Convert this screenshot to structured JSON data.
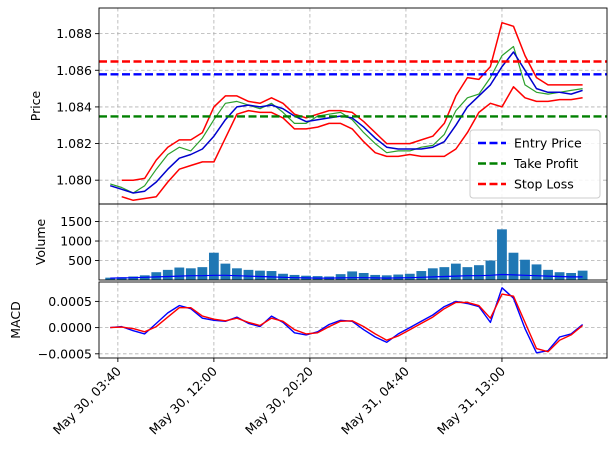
{
  "chart_data": [
    {
      "type": "line",
      "panel": "price",
      "ylabel": "Price",
      "ylim": [
        1.0787,
        1.0894
      ],
      "yticks": [
        1.08,
        1.082,
        1.084,
        1.086,
        1.088
      ],
      "ytick_labels": [
        "1.080",
        "1.082",
        "1.084",
        "1.086",
        "1.088"
      ],
      "grid": true,
      "legend_position": "bottom-right",
      "hlines": [
        {
          "name": "Entry Price",
          "value": 1.08578,
          "color": "#0000ff"
        },
        {
          "name": "Take Profit",
          "value": 1.08348,
          "color": "#008000"
        },
        {
          "name": "Stop Loss",
          "value": 1.08648,
          "color": "#ff0000"
        }
      ],
      "series": [
        {
          "role": "price",
          "color": "#2ca02c",
          "x": [
            "May 30, 03:00",
            "May 30, 04:00",
            "May 30, 05:00",
            "May 30, 06:00",
            "May 30, 07:00",
            "May 30, 08:00",
            "May 30, 09:00",
            "May 30, 10:00",
            "May 30, 11:00",
            "May 30, 12:00",
            "May 30, 13:00",
            "May 30, 14:00",
            "May 30, 15:00",
            "May 30, 16:00",
            "May 30, 17:00",
            "May 30, 18:00",
            "May 30, 19:00",
            "May 30, 20:00",
            "May 30, 21:00",
            "May 30, 22:00",
            "May 30, 23:00",
            "May 31, 00:00",
            "May 31, 01:00",
            "May 31, 02:00",
            "May 31, 03:00",
            "May 31, 04:00",
            "May 31, 05:00",
            "May 31, 06:00",
            "May 31, 07:00",
            "May 31, 08:00",
            "May 31, 09:00",
            "May 31, 10:00",
            "May 31, 11:00",
            "May 31, 12:00",
            "May 31, 13:00",
            "May 31, 14:00",
            "May 31, 15:00",
            "May 31, 16:00",
            "May 31, 17:00",
            "May 31, 18:00",
            "May 31, 19:00",
            "May 31, 20:00"
          ],
          "values": [
            1.0798,
            1.0796,
            1.0793,
            1.0797,
            1.0806,
            1.0814,
            1.0818,
            1.0816,
            1.0823,
            1.0833,
            1.0842,
            1.0843,
            1.0841,
            1.0839,
            1.0842,
            1.0837,
            1.0831,
            1.0831,
            1.0835,
            1.0836,
            1.0837,
            1.0833,
            1.0826,
            1.082,
            1.0815,
            1.0816,
            1.0816,
            1.0818,
            1.0819,
            1.0825,
            1.0838,
            1.0845,
            1.0847,
            1.0856,
            1.0868,
            1.0873,
            1.0852,
            1.0848,
            1.0847,
            1.0848,
            1.0849,
            1.085
          ]
        },
        {
          "role": "moving-average",
          "color": "#0000cd",
          "x": [
            "May 30, 03:00",
            "May 30, 04:00",
            "May 30, 05:00",
            "May 30, 06:00",
            "May 30, 07:00",
            "May 30, 08:00",
            "May 30, 09:00",
            "May 30, 10:00",
            "May 30, 11:00",
            "May 30, 12:00",
            "May 30, 13:00",
            "May 30, 14:00",
            "May 30, 15:00",
            "May 30, 16:00",
            "May 30, 17:00",
            "May 30, 18:00",
            "May 30, 19:00",
            "May 30, 20:00",
            "May 30, 21:00",
            "May 30, 22:00",
            "May 30, 23:00",
            "May 31, 00:00",
            "May 31, 01:00",
            "May 31, 02:00",
            "May 31, 03:00",
            "May 31, 04:00",
            "May 31, 05:00",
            "May 31, 06:00",
            "May 31, 07:00",
            "May 31, 08:00",
            "May 31, 09:00",
            "May 31, 10:00",
            "May 31, 11:00",
            "May 31, 12:00",
            "May 31, 13:00",
            "May 31, 14:00",
            "May 31, 15:00",
            "May 31, 16:00",
            "May 31, 17:00",
            "May 31, 18:00",
            "May 31, 19:00",
            "May 31, 20:00"
          ],
          "values": [
            1.0797,
            1.0795,
            1.0793,
            1.0794,
            1.0799,
            1.0806,
            1.0812,
            1.0814,
            1.0817,
            1.0824,
            1.0833,
            1.084,
            1.0841,
            1.084,
            1.0841,
            1.0839,
            1.0835,
            1.0832,
            1.0833,
            1.0834,
            1.0835,
            1.0834,
            1.0829,
            1.0823,
            1.0818,
            1.0817,
            1.0817,
            1.0817,
            1.0818,
            1.0821,
            1.083,
            1.084,
            1.0846,
            1.0852,
            1.0862,
            1.087,
            1.086,
            1.085,
            1.0848,
            1.0848,
            1.0847,
            1.0849
          ]
        },
        {
          "role": "upper-band",
          "color": "#ff0000",
          "x": [
            "May 30, 03:00",
            "May 30, 04:00",
            "May 30, 05:00",
            "May 30, 06:00",
            "May 30, 07:00",
            "May 30, 08:00",
            "May 30, 09:00",
            "May 30, 10:00",
            "May 30, 11:00",
            "May 30, 12:00",
            "May 30, 13:00",
            "May 30, 14:00",
            "May 30, 15:00",
            "May 30, 16:00",
            "May 30, 17:00",
            "May 30, 18:00",
            "May 30, 19:00",
            "May 30, 20:00",
            "May 30, 21:00",
            "May 30, 22:00",
            "May 30, 23:00",
            "May 31, 00:00",
            "May 31, 01:00",
            "May 31, 02:00",
            "May 31, 03:00",
            "May 31, 04:00",
            "May 31, 05:00",
            "May 31, 06:00",
            "May 31, 07:00",
            "May 31, 08:00",
            "May 31, 09:00",
            "May 31, 10:00",
            "May 31, 11:00",
            "May 31, 12:00",
            "May 31, 13:00",
            "May 31, 14:00",
            "May 31, 15:00",
            "May 31, 16:00",
            "May 31, 17:00",
            "May 31, 18:00",
            "May 31, 19:00",
            "May 31, 20:00"
          ],
          "values": [
            null,
            1.08,
            1.08,
            1.0801,
            1.0811,
            1.0818,
            1.0822,
            1.0822,
            1.0826,
            1.084,
            1.0846,
            1.0846,
            1.0843,
            1.0842,
            1.0845,
            1.0842,
            1.0836,
            1.0834,
            1.0836,
            1.0838,
            1.0838,
            1.0837,
            1.0832,
            1.0826,
            1.082,
            1.082,
            1.082,
            1.0822,
            1.0824,
            1.0831,
            1.0846,
            1.0856,
            1.0855,
            1.0862,
            1.0886,
            1.0884,
            1.0868,
            1.0856,
            1.0852,
            1.0852,
            1.0852,
            1.0852
          ]
        },
        {
          "role": "lower-band",
          "color": "#ff0000",
          "x": [
            "May 30, 03:00",
            "May 30, 04:00",
            "May 30, 05:00",
            "May 30, 06:00",
            "May 30, 07:00",
            "May 30, 08:00",
            "May 30, 09:00",
            "May 30, 10:00",
            "May 30, 11:00",
            "May 30, 12:00",
            "May 30, 13:00",
            "May 30, 14:00",
            "May 30, 15:00",
            "May 30, 16:00",
            "May 30, 17:00",
            "May 30, 18:00",
            "May 30, 19:00",
            "May 30, 20:00",
            "May 30, 21:00",
            "May 30, 22:00",
            "May 30, 23:00",
            "May 31, 00:00",
            "May 31, 01:00",
            "May 31, 02:00",
            "May 31, 03:00",
            "May 31, 04:00",
            "May 31, 05:00",
            "May 31, 06:00",
            "May 31, 07:00",
            "May 31, 08:00",
            "May 31, 09:00",
            "May 31, 10:00",
            "May 31, 11:00",
            "May 31, 12:00",
            "May 31, 13:00",
            "May 31, 14:00",
            "May 31, 15:00",
            "May 31, 16:00",
            "May 31, 17:00",
            "May 31, 18:00",
            "May 31, 19:00",
            "May 31, 20:00"
          ],
          "values": [
            null,
            1.0791,
            1.0789,
            1.079,
            1.0791,
            1.0799,
            1.0806,
            1.0808,
            1.081,
            1.081,
            1.0823,
            1.0836,
            1.0838,
            1.0837,
            1.0837,
            1.0834,
            1.0828,
            1.0828,
            1.0829,
            1.0831,
            1.0831,
            1.0828,
            1.0821,
            1.0815,
            1.0813,
            1.0813,
            1.0814,
            1.0813,
            1.0813,
            1.0813,
            1.0817,
            1.0826,
            1.0837,
            1.0842,
            1.084,
            1.0851,
            1.0845,
            1.0843,
            1.0843,
            1.0844,
            1.0844,
            1.0845
          ]
        }
      ],
      "legend": [
        "Entry Price",
        "Take Profit",
        "Stop Loss"
      ]
    },
    {
      "type": "bar",
      "panel": "volume",
      "ylabel": "Volume",
      "ylim": [
        0,
        1950
      ],
      "yticks": [
        500,
        1000,
        1500
      ],
      "ytick_labels": [
        "500",
        "1000",
        "1500"
      ],
      "grid": true,
      "color": "#1f77b4",
      "x": [
        "May 30, 03:00",
        "May 30, 04:00",
        "May 30, 05:00",
        "May 30, 06:00",
        "May 30, 07:00",
        "May 30, 08:00",
        "May 30, 09:00",
        "May 30, 10:00",
        "May 30, 11:00",
        "May 30, 12:00",
        "May 30, 13:00",
        "May 30, 14:00",
        "May 30, 15:00",
        "May 30, 16:00",
        "May 30, 17:00",
        "May 30, 18:00",
        "May 30, 19:00",
        "May 30, 20:00",
        "May 30, 21:00",
        "May 30, 22:00",
        "May 30, 23:00",
        "May 31, 00:00",
        "May 31, 01:00",
        "May 31, 02:00",
        "May 31, 03:00",
        "May 31, 04:00",
        "May 31, 05:00",
        "May 31, 06:00",
        "May 31, 07:00",
        "May 31, 08:00",
        "May 31, 09:00",
        "May 31, 10:00",
        "May 31, 11:00",
        "May 31, 12:00",
        "May 31, 13:00",
        "May 31, 14:00",
        "May 31, 15:00",
        "May 31, 16:00",
        "May 31, 17:00",
        "May 31, 18:00",
        "May 31, 19:00",
        "May 31, 20:00"
      ],
      "values": [
        60,
        70,
        90,
        120,
        200,
        260,
        320,
        300,
        330,
        700,
        420,
        300,
        260,
        240,
        230,
        160,
        130,
        110,
        100,
        90,
        150,
        220,
        180,
        130,
        120,
        140,
        160,
        230,
        300,
        330,
        420,
        330,
        380,
        500,
        1300,
        700,
        520,
        400,
        260,
        200,
        180,
        240
      ],
      "volume_ma": [
        50,
        55,
        60,
        70,
        80,
        90,
        100,
        110,
        110,
        120,
        120,
        110,
        100,
        90,
        80,
        70,
        60,
        55,
        50,
        50,
        55,
        60,
        60,
        55,
        50,
        55,
        60,
        70,
        80,
        90,
        100,
        110,
        110,
        120,
        140,
        130,
        120,
        110,
        100,
        90,
        80,
        80
      ]
    },
    {
      "type": "line",
      "panel": "macd",
      "ylabel": "MACD",
      "ylim": [
        -0.00058,
        0.00087
      ],
      "yticks": [
        -0.0005,
        0.0,
        0.0005
      ],
      "ytick_labels": [
        "−0.0005",
        "0.0000",
        "0.0005"
      ],
      "grid": true,
      "x_tick_labels": [
        "May 30, 03:40",
        "May 30, 12:00",
        "May 30, 20:20",
        "May 31, 04:40",
        "May 31, 13:00"
      ],
      "x_ticks": [
        "May 30, 03:40",
        "May 30, 12:00",
        "May 30, 20:20",
        "May 31, 04:40",
        "May 31, 13:00"
      ],
      "series": [
        {
          "role": "macd",
          "color": "#0000ff",
          "x": [
            "May 30, 03:00",
            "May 30, 04:00",
            "May 30, 05:00",
            "May 30, 06:00",
            "May 30, 07:00",
            "May 30, 08:00",
            "May 30, 09:00",
            "May 30, 10:00",
            "May 30, 11:00",
            "May 30, 12:00",
            "May 30, 13:00",
            "May 30, 14:00",
            "May 30, 15:00",
            "May 30, 16:00",
            "May 30, 17:00",
            "May 30, 18:00",
            "May 30, 19:00",
            "May 30, 20:00",
            "May 30, 21:00",
            "May 30, 22:00",
            "May 30, 23:00",
            "May 31, 00:00",
            "May 31, 01:00",
            "May 31, 02:00",
            "May 31, 03:00",
            "May 31, 04:00",
            "May 31, 05:00",
            "May 31, 06:00",
            "May 31, 07:00",
            "May 31, 08:00",
            "May 31, 09:00",
            "May 31, 10:00",
            "May 31, 11:00",
            "May 31, 12:00",
            "May 31, 13:00",
            "May 31, 14:00",
            "May 31, 15:00",
            "May 31, 16:00",
            "May 31, 17:00",
            "May 31, 18:00",
            "May 31, 19:00",
            "May 31, 20:00"
          ],
          "values": [
            0.0,
            2e-05,
            -6e-05,
            -0.00012,
            8e-05,
            0.00028,
            0.00042,
            0.00036,
            0.00018,
            0.00014,
            0.00012,
            0.0002,
            8e-05,
            2e-05,
            0.00022,
            0.0001,
            -0.0001,
            -0.00014,
            -8e-05,
            6e-05,
            0.00014,
            0.00012,
            -4e-05,
            -0.00018,
            -0.00028,
            -0.00012,
            0.0,
            0.00012,
            0.00024,
            0.0004,
            0.0005,
            0.00046,
            0.0004,
            0.0001,
            0.00076,
            0.00056,
            -2e-05,
            -0.00048,
            -0.00044,
            -0.00018,
            -0.00012,
            6e-05
          ]
        },
        {
          "role": "signal",
          "color": "#ff0000",
          "x": [
            "May 30, 03:00",
            "May 30, 04:00",
            "May 30, 05:00",
            "May 30, 06:00",
            "May 30, 07:00",
            "May 30, 08:00",
            "May 30, 09:00",
            "May 30, 10:00",
            "May 30, 11:00",
            "May 30, 12:00",
            "May 30, 13:00",
            "May 30, 14:00",
            "May 30, 15:00",
            "May 30, 16:00",
            "May 30, 17:00",
            "May 30, 18:00",
            "May 30, 19:00",
            "May 30, 20:00",
            "May 30, 21:00",
            "May 30, 22:00",
            "May 30, 23:00",
            "May 31, 00:00",
            "May 31, 01:00",
            "May 31, 02:00",
            "May 31, 03:00",
            "May 31, 04:00",
            "May 31, 05:00",
            "May 31, 06:00",
            "May 31, 07:00",
            "May 31, 08:00",
            "May 31, 09:00",
            "May 31, 10:00",
            "May 31, 11:00",
            "May 31, 12:00",
            "May 31, 13:00",
            "May 31, 14:00",
            "May 31, 15:00",
            "May 31, 16:00",
            "May 31, 17:00",
            "May 31, 18:00",
            "May 31, 19:00",
            "May 31, 20:00"
          ],
          "values": [
            0.0,
            1e-05,
            -2e-05,
            -8e-05,
            2e-05,
            0.0002,
            0.00038,
            0.00038,
            0.00022,
            0.00016,
            0.00013,
            0.00018,
            0.0001,
            4e-05,
            0.00018,
            0.00012,
            -4e-05,
            -0.00012,
            -0.0001,
            2e-05,
            0.00012,
            0.00013,
            2e-05,
            -0.00012,
            -0.00024,
            -0.00016,
            -4e-05,
            8e-05,
            0.0002,
            0.00036,
            0.00048,
            0.00048,
            0.00042,
            0.00018,
            0.00064,
            0.0006,
            0.0001,
            -0.0004,
            -0.00046,
            -0.00024,
            -0.00014,
            4e-05
          ]
        }
      ]
    }
  ]
}
